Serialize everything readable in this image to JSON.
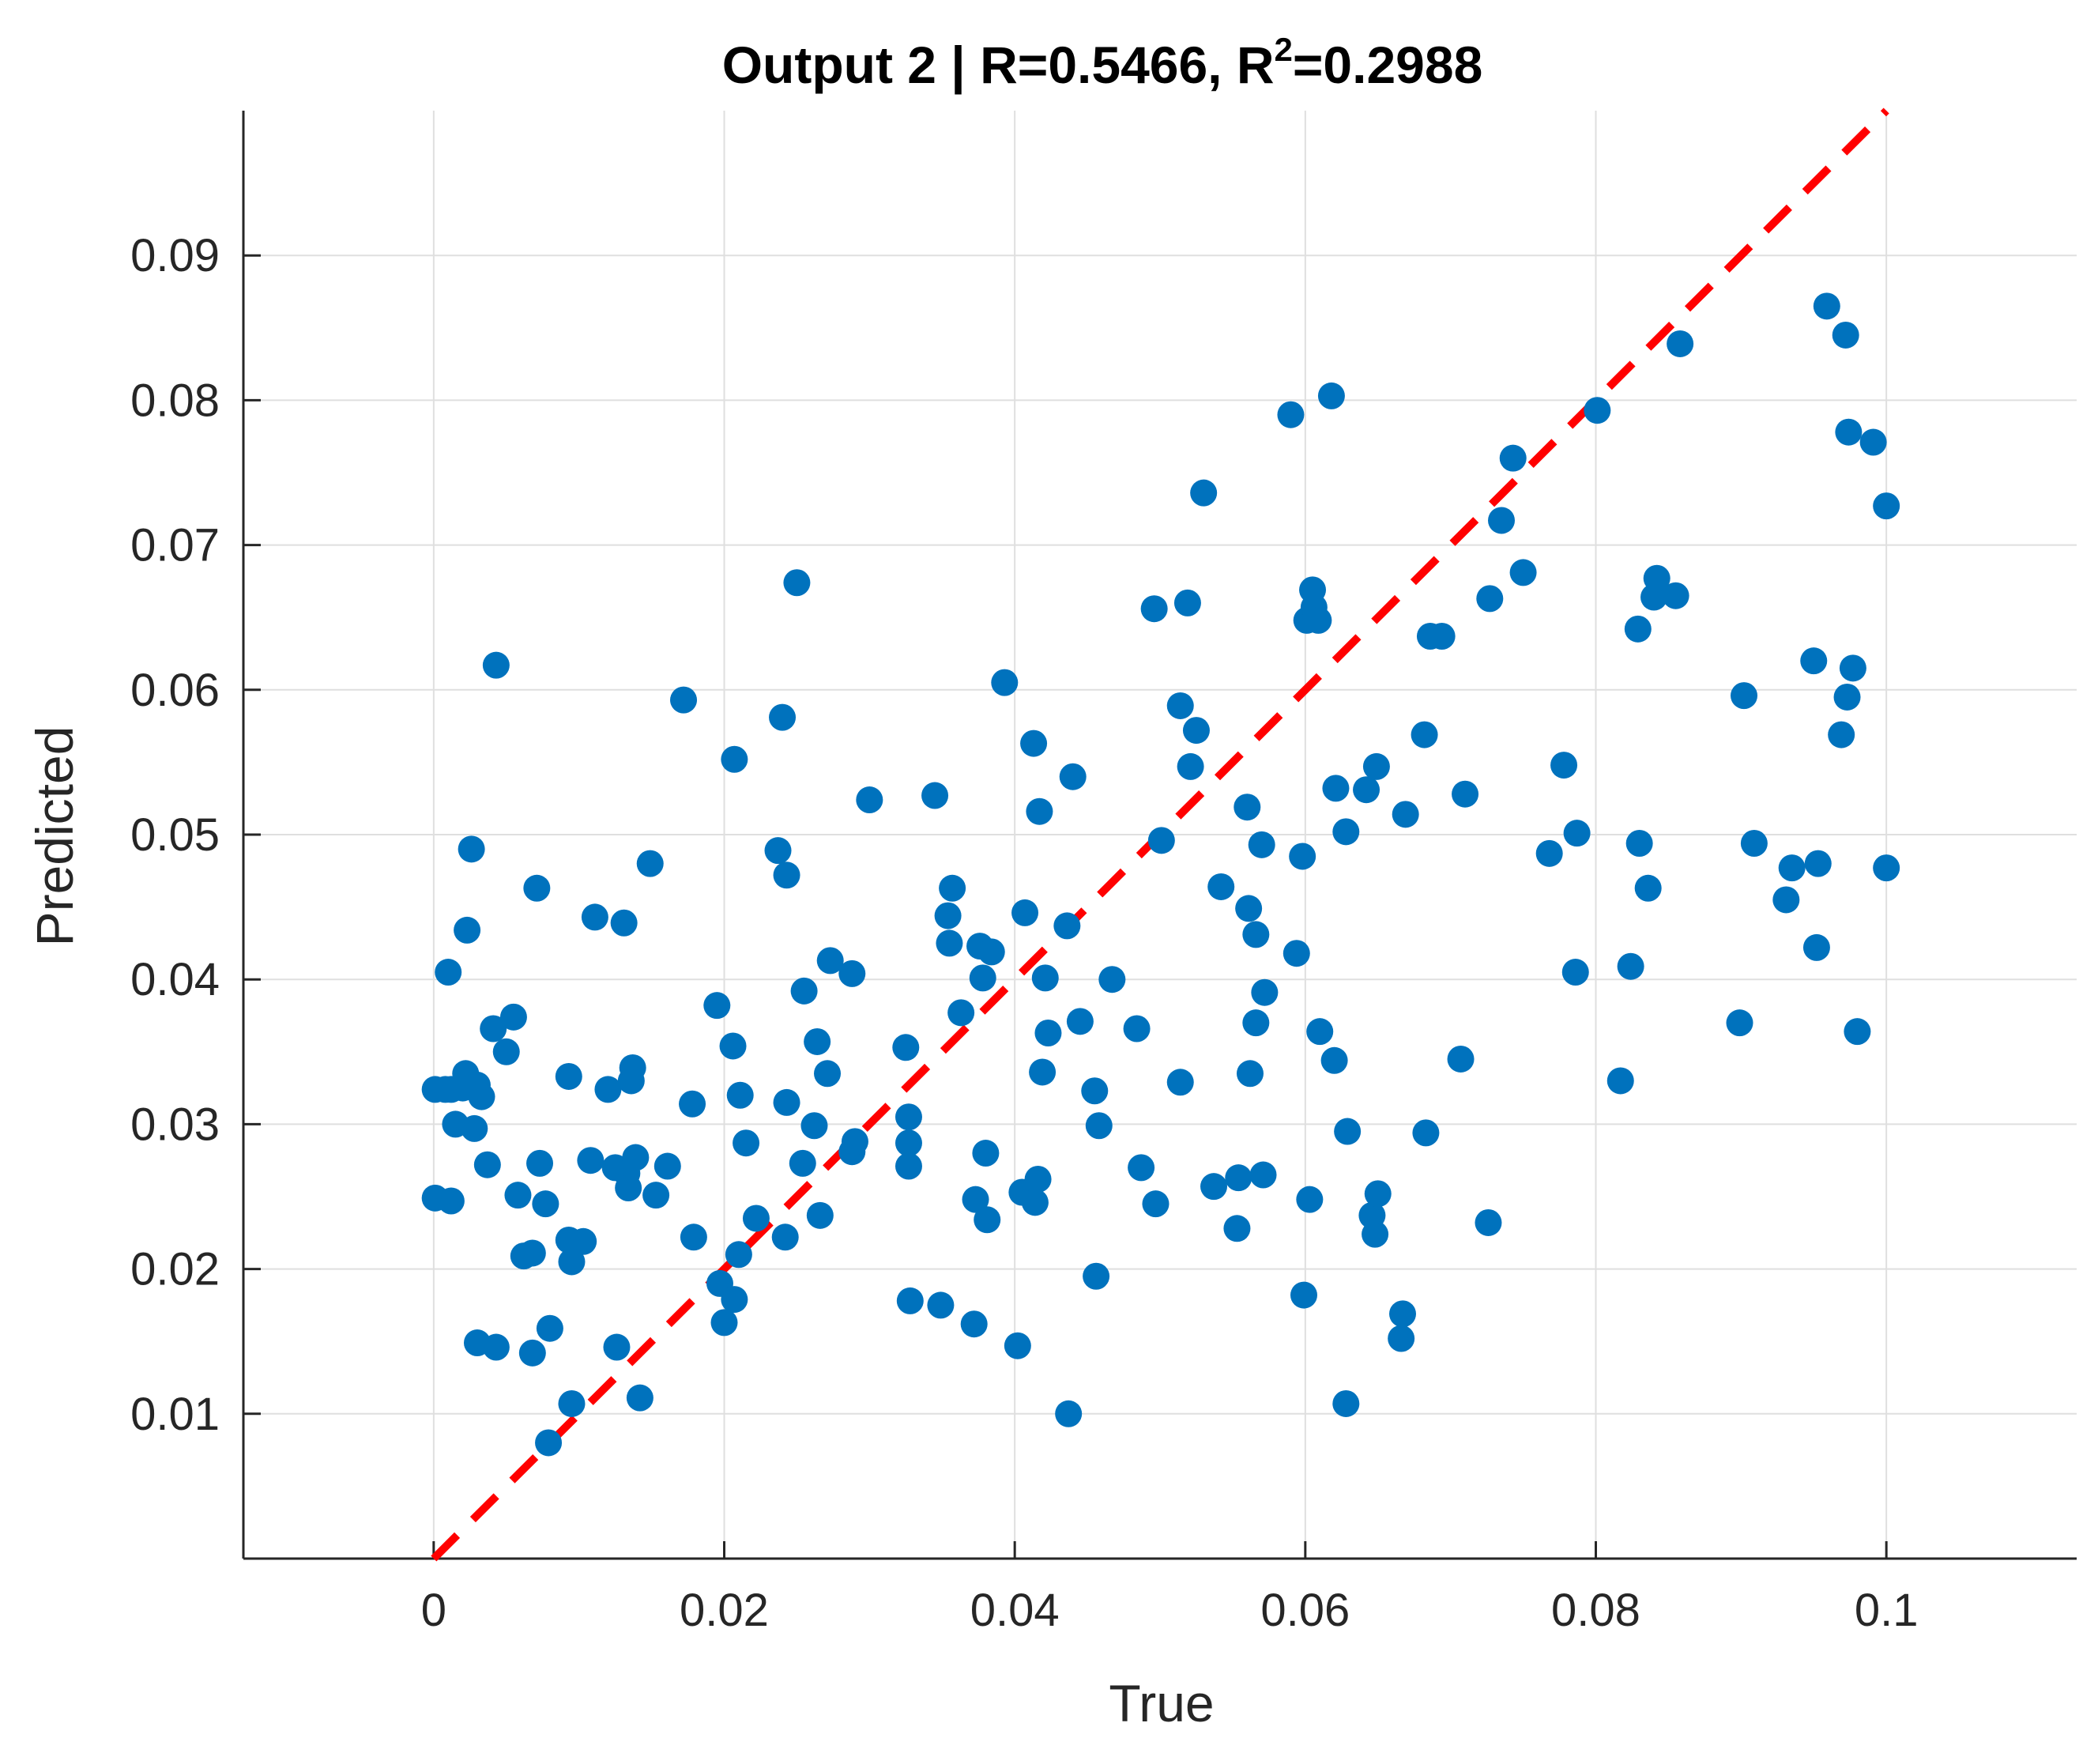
{
  "chart_data": {
    "type": "scatter",
    "title": "Output 2 | R=0.5466, R",
    "title_superscript": "2",
    "title_suffix": "=0.2988",
    "xlabel": "True",
    "ylabel": "Predicted",
    "xlim": [
      -0.0131,
      0.1131
    ],
    "ylim": [
      0,
      0.1
    ],
    "xticks": [
      0,
      0.02,
      0.04,
      0.06,
      0.08,
      0.1
    ],
    "xtick_labels": [
      "0",
      "0.02",
      "0.04",
      "0.06",
      "0.08",
      "0.1"
    ],
    "yticks": [
      0.01,
      0.02,
      0.03,
      0.04,
      0.05,
      0.06,
      0.07,
      0.08,
      0.09
    ],
    "ytick_labels": [
      "0.01",
      "0.02",
      "0.03",
      "0.04",
      "0.05",
      "0.06",
      "0.07",
      "0.08",
      "0.09"
    ],
    "grid": true,
    "marker_color": "#0072BD",
    "reference_line": {
      "from": [
        0,
        0
      ],
      "to": [
        0.1,
        0.1
      ],
      "color": "#FF0000",
      "style": "dashed"
    },
    "points": [
      [
        0.0001,
        0.0324
      ],
      [
        0.0008,
        0.0324
      ],
      [
        0.0012,
        0.0324
      ],
      [
        0.0022,
        0.0335
      ],
      [
        0.002,
        0.0325
      ],
      [
        0.003,
        0.0327
      ],
      [
        0.0033,
        0.0319
      ],
      [
        0.0015,
        0.03
      ],
      [
        0.0028,
        0.0297
      ],
      [
        0.0037,
        0.0272
      ],
      [
        0.0001,
        0.0249
      ],
      [
        0.0012,
        0.0247
      ],
      [
        0.001,
        0.0405
      ],
      [
        0.0023,
        0.0434
      ],
      [
        0.0026,
        0.049
      ],
      [
        0.0041,
        0.0366
      ],
      [
        0.005,
        0.035
      ],
      [
        0.0055,
        0.0374
      ],
      [
        0.0043,
        0.0617
      ],
      [
        0.003,
        0.0149
      ],
      [
        0.0043,
        0.0146
      ],
      [
        0.0058,
        0.0251
      ],
      [
        0.0062,
        0.0209
      ],
      [
        0.0068,
        0.0211
      ],
      [
        0.0068,
        0.0142
      ],
      [
        0.0071,
        0.0463
      ],
      [
        0.0073,
        0.0273
      ],
      [
        0.0077,
        0.0245
      ],
      [
        0.008,
        0.0159
      ],
      [
        0.0079,
        0.008
      ],
      [
        0.0093,
        0.0333
      ],
      [
        0.0093,
        0.022
      ],
      [
        0.0095,
        0.0205
      ],
      [
        0.0095,
        0.0107
      ],
      [
        0.0103,
        0.0219
      ],
      [
        0.0108,
        0.0275
      ],
      [
        0.0111,
        0.0443
      ],
      [
        0.012,
        0.0324
      ],
      [
        0.0125,
        0.027
      ],
      [
        0.0126,
        0.0146
      ],
      [
        0.0131,
        0.0439
      ],
      [
        0.0133,
        0.0266
      ],
      [
        0.0134,
        0.0256
      ],
      [
        0.0136,
        0.033
      ],
      [
        0.0137,
        0.0339
      ],
      [
        0.0139,
        0.0277
      ],
      [
        0.0142,
        0.0111
      ],
      [
        0.0149,
        0.048
      ],
      [
        0.0153,
        0.0251
      ],
      [
        0.0161,
        0.0271
      ],
      [
        0.0172,
        0.0593
      ],
      [
        0.0178,
        0.0314
      ],
      [
        0.0179,
        0.0222
      ],
      [
        0.0195,
        0.0382
      ],
      [
        0.0197,
        0.019
      ],
      [
        0.02,
        0.0163
      ],
      [
        0.0206,
        0.0354
      ],
      [
        0.0207,
        0.0552
      ],
      [
        0.0207,
        0.0179
      ],
      [
        0.021,
        0.021
      ],
      [
        0.0211,
        0.032
      ],
      [
        0.0215,
        0.0287
      ],
      [
        0.0222,
        0.0235
      ],
      [
        0.0237,
        0.0489
      ],
      [
        0.024,
        0.0581
      ],
      [
        0.0242,
        0.0222
      ],
      [
        0.0243,
        0.0315
      ],
      [
        0.0243,
        0.0472
      ],
      [
        0.025,
        0.0674
      ],
      [
        0.0254,
        0.0273
      ],
      [
        0.0255,
        0.0392
      ],
      [
        0.0262,
        0.0299
      ],
      [
        0.0264,
        0.0357
      ],
      [
        0.0266,
        0.0237
      ],
      [
        0.0271,
        0.0335
      ],
      [
        0.0273,
        0.0413
      ],
      [
        0.0288,
        0.0404
      ],
      [
        0.0288,
        0.0281
      ],
      [
        0.029,
        0.0288
      ],
      [
        0.03,
        0.0524
      ],
      [
        0.0325,
        0.0353
      ],
      [
        0.0327,
        0.0305
      ],
      [
        0.0327,
        0.0287
      ],
      [
        0.0327,
        0.0271
      ],
      [
        0.0328,
        0.0178
      ],
      [
        0.0345,
        0.0527
      ],
      [
        0.0349,
        0.0175
      ],
      [
        0.0354,
        0.0444
      ],
      [
        0.0355,
        0.0425
      ],
      [
        0.0357,
        0.0463
      ],
      [
        0.0363,
        0.0377
      ],
      [
        0.0372,
        0.0162
      ],
      [
        0.0373,
        0.0248
      ],
      [
        0.0376,
        0.0423
      ],
      [
        0.0378,
        0.0401
      ],
      [
        0.038,
        0.028
      ],
      [
        0.0381,
        0.0234
      ],
      [
        0.0384,
        0.0419
      ],
      [
        0.0393,
        0.0605
      ],
      [
        0.0402,
        0.0147
      ],
      [
        0.0405,
        0.0253
      ],
      [
        0.0407,
        0.0446
      ],
      [
        0.0413,
        0.0563
      ],
      [
        0.0414,
        0.0246
      ],
      [
        0.0416,
        0.0262
      ],
      [
        0.0417,
        0.0516
      ],
      [
        0.0419,
        0.0336
      ],
      [
        0.0421,
        0.0401
      ],
      [
        0.0423,
        0.0363
      ],
      [
        0.0436,
        0.0437
      ],
      [
        0.0437,
        0.01
      ],
      [
        0.044,
        0.054
      ],
      [
        0.0445,
        0.0371
      ],
      [
        0.0455,
        0.0323
      ],
      [
        0.0456,
        0.0195
      ],
      [
        0.0458,
        0.0299
      ],
      [
        0.0467,
        0.04
      ],
      [
        0.0484,
        0.0366
      ],
      [
        0.0487,
        0.027
      ],
      [
        0.0496,
        0.0656
      ],
      [
        0.0497,
        0.0245
      ],
      [
        0.0501,
        0.0496
      ],
      [
        0.0514,
        0.0589
      ],
      [
        0.0514,
        0.0329
      ],
      [
        0.0519,
        0.066
      ],
      [
        0.0521,
        0.0547
      ],
      [
        0.0525,
        0.0572
      ],
      [
        0.053,
        0.0736
      ],
      [
        0.0537,
        0.0257
      ],
      [
        0.0542,
        0.0464
      ],
      [
        0.0553,
        0.0228
      ],
      [
        0.0554,
        0.0263
      ],
      [
        0.056,
        0.0519
      ],
      [
        0.0561,
        0.0449
      ],
      [
        0.0562,
        0.0335
      ],
      [
        0.0566,
        0.037
      ],
      [
        0.0566,
        0.0431
      ],
      [
        0.057,
        0.0493
      ],
      [
        0.0571,
        0.0265
      ],
      [
        0.0572,
        0.0391
      ],
      [
        0.059,
        0.079
      ],
      [
        0.0594,
        0.0418
      ],
      [
        0.0598,
        0.0485
      ],
      [
        0.0599,
        0.0182
      ],
      [
        0.0601,
        0.0648
      ],
      [
        0.0603,
        0.0248
      ],
      [
        0.0605,
        0.0669
      ],
      [
        0.0606,
        0.0657
      ],
      [
        0.0609,
        0.0648
      ],
      [
        0.061,
        0.0364
      ],
      [
        0.0618,
        0.0803
      ],
      [
        0.062,
        0.0344
      ],
      [
        0.0621,
        0.0532
      ],
      [
        0.0628,
        0.0107
      ],
      [
        0.0628,
        0.0502
      ],
      [
        0.0629,
        0.0295
      ],
      [
        0.0642,
        0.0531
      ],
      [
        0.0646,
        0.0237
      ],
      [
        0.0648,
        0.0224
      ],
      [
        0.0649,
        0.0547
      ],
      [
        0.065,
        0.0252
      ],
      [
        0.0666,
        0.0152
      ],
      [
        0.0667,
        0.0169
      ],
      [
        0.0669,
        0.0514
      ],
      [
        0.0682,
        0.0569
      ],
      [
        0.0683,
        0.0294
      ],
      [
        0.0686,
        0.0637
      ],
      [
        0.0694,
        0.0637
      ],
      [
        0.0707,
        0.0345
      ],
      [
        0.071,
        0.0528
      ],
      [
        0.0726,
        0.0232
      ],
      [
        0.0727,
        0.0663
      ],
      [
        0.0735,
        0.0717
      ],
      [
        0.0743,
        0.076
      ],
      [
        0.075,
        0.0681
      ],
      [
        0.0768,
        0.0487
      ],
      [
        0.0778,
        0.0548
      ],
      [
        0.0786,
        0.0405
      ],
      [
        0.0787,
        0.0501
      ],
      [
        0.0801,
        0.0793
      ],
      [
        0.0817,
        0.033
      ],
      [
        0.0824,
        0.0409
      ],
      [
        0.0829,
        0.0642
      ],
      [
        0.083,
        0.0494
      ],
      [
        0.0836,
        0.0463
      ],
      [
        0.084,
        0.0664
      ],
      [
        0.0842,
        0.0677
      ],
      [
        0.0855,
        0.0665
      ],
      [
        0.0858,
        0.0839
      ],
      [
        0.0899,
        0.037
      ],
      [
        0.0902,
        0.0596
      ],
      [
        0.0909,
        0.0494
      ],
      [
        0.0931,
        0.0455
      ],
      [
        0.0935,
        0.0477
      ],
      [
        0.095,
        0.062
      ],
      [
        0.0952,
        0.0422
      ],
      [
        0.0953,
        0.048
      ],
      [
        0.0959,
        0.0865
      ],
      [
        0.0969,
        0.0569
      ],
      [
        0.0972,
        0.0845
      ],
      [
        0.0973,
        0.0595
      ],
      [
        0.0974,
        0.0778
      ],
      [
        0.0977,
        0.0615
      ],
      [
        0.098,
        0.0364
      ],
      [
        0.0991,
        0.0771
      ],
      [
        0.1,
        0.0727
      ],
      [
        0.1,
        0.0477
      ]
    ]
  }
}
